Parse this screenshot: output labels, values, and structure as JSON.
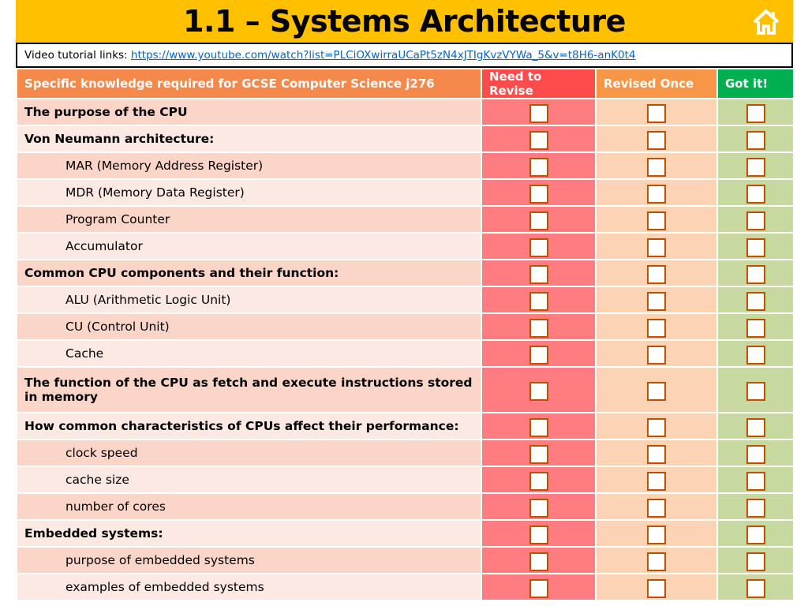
{
  "header": {
    "title": "1.1 – Systems Architecture",
    "home_icon": "home-icon"
  },
  "links": {
    "label": "Video tutorial links:",
    "url_text": "https://www.youtube.com/watch?list=PLCiOXwirraUCaPt5zN4xJTIgKvzVYWa_5&v=t8H6-anK0t4"
  },
  "table": {
    "headers": [
      "Specific knowledge required for GCSE Computer Science j276",
      "Need to Revise",
      "Revised Once",
      "Got it!"
    ],
    "rows": [
      {
        "text": "The purpose of the CPU",
        "style": "bold",
        "height": 34
      },
      {
        "text": "Von Neumann architecture:",
        "style": "bold",
        "height": 34
      },
      {
        "text": "MAR (Memory Address Register)",
        "style": "sub",
        "height": 34
      },
      {
        "text": "MDR (Memory Data Register)",
        "style": "sub",
        "height": 34
      },
      {
        "text": "Program Counter",
        "style": "sub",
        "height": 34
      },
      {
        "text": "Accumulator",
        "style": "sub",
        "height": 34
      },
      {
        "text": "Common CPU components and their function:",
        "style": "bold",
        "height": 34
      },
      {
        "text": "ALU (Arithmetic Logic Unit)",
        "style": "sub",
        "height": 34
      },
      {
        "text": "CU (Control Unit)",
        "style": "sub",
        "height": 34
      },
      {
        "text": "Cache",
        "style": "sub",
        "height": 34
      },
      {
        "text": "The function of the CPU as fetch and execute instructions stored in memory",
        "style": "bold",
        "height": 58
      },
      {
        "text": "How common characteristics of CPUs affect their performance:",
        "style": "bold",
        "height": 34
      },
      {
        "text": "clock speed",
        "style": "sub",
        "height": 34
      },
      {
        "text": "cache size",
        "style": "sub",
        "height": 34
      },
      {
        "text": "number of cores",
        "style": "sub",
        "height": 34
      },
      {
        "text": "Embedded systems:",
        "style": "bold",
        "height": 34
      },
      {
        "text": "purpose of embedded systems",
        "style": "sub",
        "height": 34
      },
      {
        "text": "examples of embedded systems",
        "style": "sub",
        "height": 34
      }
    ]
  }
}
